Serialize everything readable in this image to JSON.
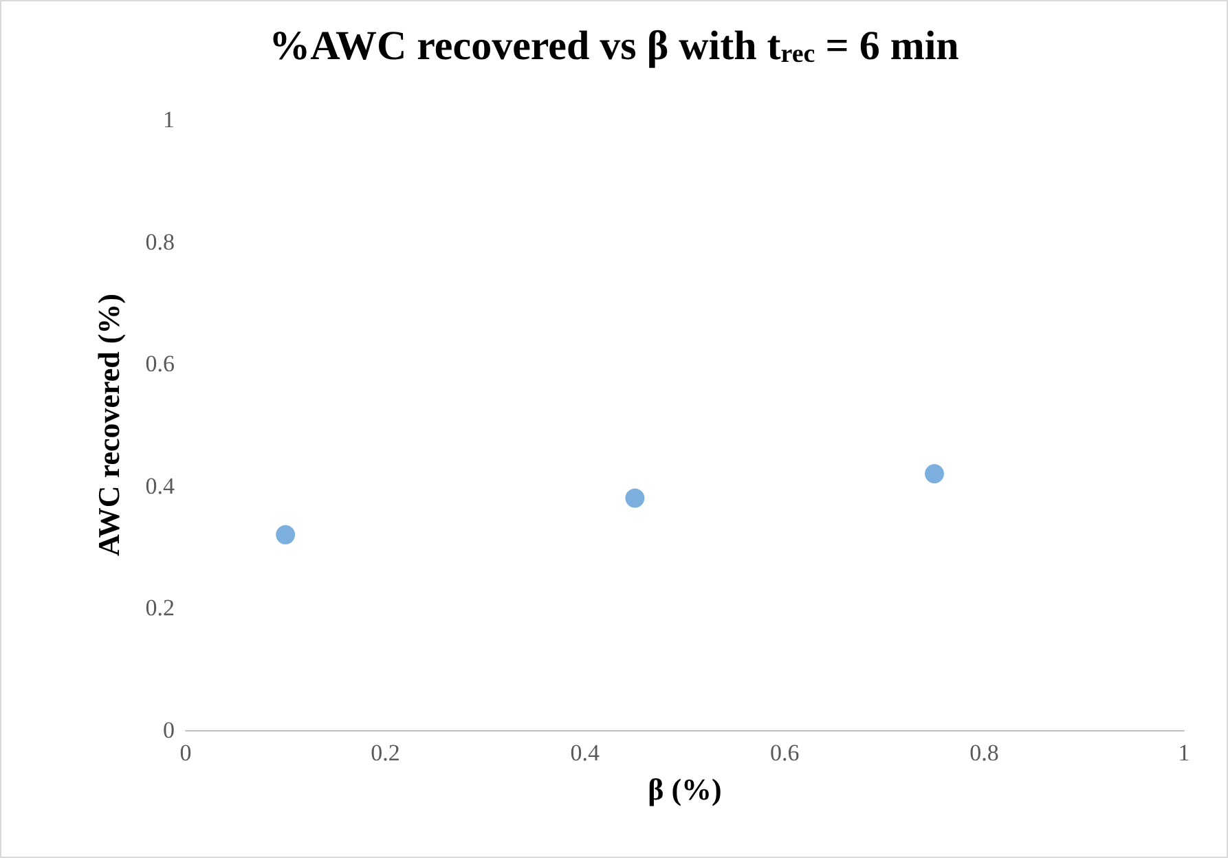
{
  "chart_data": {
    "type": "scatter",
    "title": "%AWC recovered vs β with t$_{rec}$ = 6 min",
    "xlabel": "β (%)",
    "ylabel": "AWC recovered (%)",
    "x": [
      0.1,
      0.45,
      0.75
    ],
    "series": [
      {
        "color": "#5b9bd5",
        "values": [
          0.32,
          0.38,
          0.42
        ]
      }
    ],
    "xlim": [
      0,
      1
    ],
    "xticks": [
      0,
      0.2,
      0.4,
      0.6,
      0.8,
      1
    ],
    "ylim": [
      0,
      1
    ],
    "yticks": [
      0,
      0.2,
      0.4,
      0.6,
      0.8,
      1
    ],
    "grid": false,
    "marker": "circle"
  }
}
